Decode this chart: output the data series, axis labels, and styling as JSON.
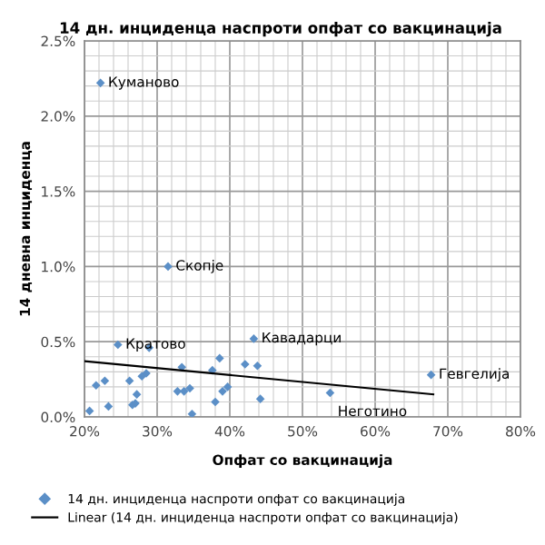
{
  "chart_data": {
    "type": "scatter",
    "title": "14 дн. инциденца наспроти опфат со вакцинација",
    "xlabel": "Опфат со вакцинација",
    "ylabel": "14 дневна инциденца",
    "series": [
      {
        "name": "14 дн. инциденца наспроти опфат со вакцинација",
        "color": "#5b8fc7",
        "marker": "diamond",
        "x": [
          22.2,
          31.5,
          24.6,
          28.9,
          43.3,
          38.6,
          37.6,
          42.1,
          43.8,
          33.4,
          27.9,
          28.5,
          26.2,
          22.8,
          21.6,
          67.7,
          53.8,
          20.7,
          23.3,
          26.6,
          27.0,
          27.2,
          32.8,
          33.7,
          34.5,
          34.8,
          38.0,
          39.0,
          39.7,
          44.2
        ],
        "values": [
          2.22,
          1.0,
          0.48,
          0.46,
          0.52,
          0.39,
          0.31,
          0.35,
          0.34,
          0.33,
          0.27,
          0.29,
          0.24,
          0.24,
          0.21,
          0.28,
          0.16,
          0.04,
          0.07,
          0.08,
          0.09,
          0.15,
          0.17,
          0.17,
          0.19,
          0.02,
          0.1,
          0.17,
          0.2,
          0.12
        ]
      },
      {
        "name": "Linear (14 дн. инциденца наспроти опфат со вакцинација)",
        "type": "line",
        "color": "#000000",
        "x": [
          20,
          68
        ],
        "values": [
          0.37,
          0.15
        ]
      }
    ],
    "annotations": [
      {
        "text": "Куманово",
        "x": 22.2,
        "y": 2.22
      },
      {
        "text": "Скопје",
        "x": 31.5,
        "y": 1.0
      },
      {
        "text": "Кратово",
        "x": 24.6,
        "y": 0.48
      },
      {
        "text": "Кавадарци",
        "x": 43.3,
        "y": 0.52
      },
      {
        "text": "Гевгелија",
        "x": 67.7,
        "y": 0.28
      },
      {
        "text": "Неготино",
        "x": 53.8,
        "y": 0.16
      }
    ],
    "xlim": [
      20,
      80
    ],
    "ylim": [
      0,
      2.5
    ],
    "xticks": [
      {
        "value": 20,
        "label": "20%"
      },
      {
        "value": 30,
        "label": "30%"
      },
      {
        "value": 40,
        "label": "40%"
      },
      {
        "value": 50,
        "label": "50%"
      },
      {
        "value": 60,
        "label": "60%"
      },
      {
        "value": 70,
        "label": "70%"
      },
      {
        "value": 80,
        "label": "80%"
      }
    ],
    "yticks": [
      {
        "value": 0,
        "label": "0.0%"
      },
      {
        "value": 0.5,
        "label": "0.5%"
      },
      {
        "value": 1.0,
        "label": "1.0%"
      },
      {
        "value": 1.5,
        "label": "1.5%"
      },
      {
        "value": 2.0,
        "label": "2.0%"
      },
      {
        "value": 2.5,
        "label": "2.5%"
      }
    ],
    "grid": true,
    "legend": "bottom"
  }
}
